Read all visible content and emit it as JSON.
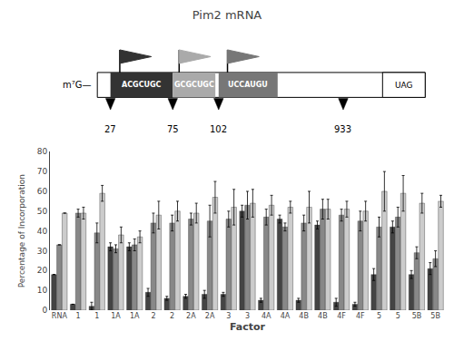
{
  "chart_data": {
    "type": "bar",
    "title": "Pim2 mRNA",
    "xlabel": "Factor",
    "ylabel": "Percentage of Incorporation",
    "categories": [
      "RNA",
      "1",
      "1",
      "1A",
      "1A",
      "2",
      "2",
      "2A",
      "2A",
      "3",
      "3",
      "4A",
      "4A",
      "4B",
      "4B",
      "4F",
      "4F",
      "5",
      "5",
      "5B",
      "5B"
    ],
    "series": [
      {
        "color": "#444444",
        "values": [
          18,
          3,
          2,
          32,
          32,
          9,
          6,
          7,
          8,
          8,
          50,
          5,
          46,
          5,
          43,
          4,
          3,
          18,
          42,
          18,
          21
        ],
        "errors": [
          0,
          0,
          2,
          2,
          2,
          2,
          1,
          1,
          2,
          1,
          3,
          1,
          2,
          1,
          2,
          2,
          1,
          3,
          3,
          2,
          3
        ]
      },
      {
        "color": "#888888",
        "values": [
          33,
          49,
          39,
          31,
          33,
          44,
          44,
          46,
          45,
          46,
          53,
          47,
          42,
          44,
          51,
          48,
          45,
          42,
          47,
          29,
          26
        ],
        "errors": [
          0,
          2,
          5,
          2,
          3,
          5,
          4,
          3,
          8,
          4,
          7,
          4,
          2,
          4,
          5,
          3,
          5,
          5,
          5,
          3,
          4
        ]
      },
      {
        "color": "#cccccc",
        "values": [
          49,
          49,
          59,
          38,
          37,
          48,
          50,
          49,
          57,
          52,
          54,
          53,
          52,
          52,
          51,
          51,
          50,
          60,
          59,
          54,
          55
        ],
        "errors": [
          0,
          3,
          4,
          4,
          3,
          7,
          5,
          5,
          8,
          9,
          7,
          5,
          3,
          8,
          5,
          4,
          5,
          10,
          9,
          5,
          3
        ]
      }
    ],
    "ylim": [
      0,
      80
    ],
    "yticks": [
      0,
      10,
      20,
      30,
      40,
      50,
      60,
      70,
      80
    ],
    "grid": false,
    "annotations": [
      {
        "text": "m⁷G—"
      },
      {
        "text": "ACGCUGC",
        "color": "#333333"
      },
      {
        "text": "GCGCUGC",
        "color": "#aaaaaa"
      },
      {
        "text": "UCCAUGU",
        "color": "#777777"
      },
      {
        "text": "UAG"
      },
      {
        "text": "27"
      },
      {
        "text": "75"
      },
      {
        "text": "102"
      },
      {
        "text": "933"
      }
    ]
  }
}
